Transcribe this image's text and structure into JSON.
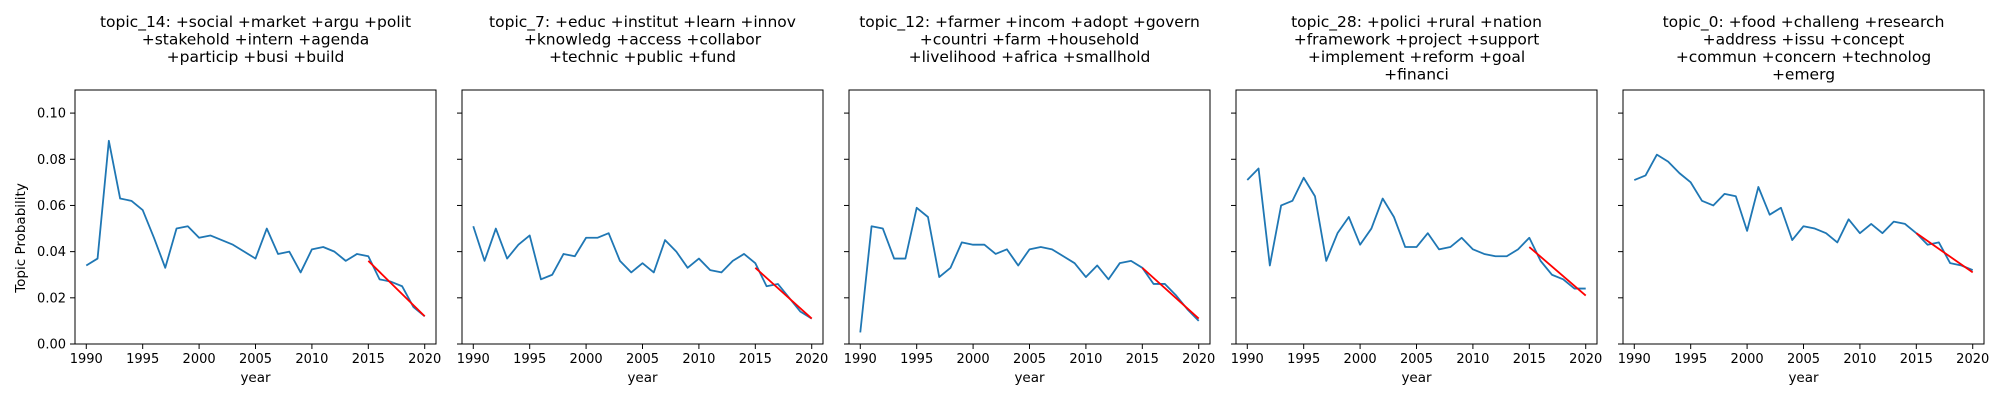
{
  "figure": {
    "ylabel": "Topic Probability",
    "colors": {
      "series": "#1f77b4",
      "trend": "#ff0000"
    }
  },
  "chart_data": [
    {
      "type": "line",
      "title_lines": [
        "topic_14: +social +market +argu +polit",
        "+stakehold +intern +agenda",
        "+particip +busi +build"
      ],
      "xlabel": "year",
      "xlim": [
        1989,
        2021
      ],
      "ylim": [
        0,
        0.11
      ],
      "xticks": [
        "1990",
        "1995",
        "2000",
        "2005",
        "2010",
        "2015",
        "2020"
      ],
      "yticks": [
        "0.00",
        "0.02",
        "0.04",
        "0.06",
        "0.08",
        "0.10"
      ],
      "x": [
        1990,
        1991,
        1992,
        1993,
        1994,
        1995,
        1996,
        1997,
        1998,
        1999,
        2000,
        2001,
        2002,
        2003,
        2004,
        2005,
        2006,
        2007,
        2008,
        2009,
        2010,
        2011,
        2012,
        2013,
        2014,
        2015,
        2016,
        2017,
        2018,
        2019,
        2020
      ],
      "series": [
        {
          "values": [
            0.034,
            0.037,
            0.088,
            0.063,
            0.062,
            0.058,
            0.046,
            0.033,
            0.05,
            0.051,
            0.046,
            0.047,
            0.045,
            0.043,
            0.04,
            0.037,
            0.05,
            0.039,
            0.04,
            0.031,
            0.041,
            0.042,
            0.04,
            0.036,
            0.039,
            0.038,
            0.028,
            0.027,
            0.025,
            0.016,
            0.012
          ]
        },
        {
          "kind": "trend",
          "x": [
            2015,
            2020
          ],
          "values": [
            0.036,
            0.012
          ]
        }
      ]
    },
    {
      "type": "line",
      "title_lines": [
        "topic_7: +educ +institut +learn +innov",
        "+knowledg +access +collabor",
        "+technic +public +fund"
      ],
      "xlabel": "year",
      "xlim": [
        1989,
        2021
      ],
      "ylim": [
        0,
        0.11
      ],
      "xticks": [
        "1990",
        "1995",
        "2000",
        "2005",
        "2010",
        "2015",
        "2020"
      ],
      "x": [
        1990,
        1991,
        1992,
        1993,
        1994,
        1995,
        1996,
        1997,
        1998,
        1999,
        2000,
        2001,
        2002,
        2003,
        2004,
        2005,
        2006,
        2007,
        2008,
        2009,
        2010,
        2011,
        2012,
        2013,
        2014,
        2015,
        2016,
        2017,
        2018,
        2019,
        2020
      ],
      "series": [
        {
          "values": [
            0.051,
            0.036,
            0.05,
            0.037,
            0.043,
            0.047,
            0.028,
            0.03,
            0.039,
            0.038,
            0.046,
            0.046,
            0.048,
            0.036,
            0.031,
            0.035,
            0.031,
            0.045,
            0.04,
            0.033,
            0.037,
            0.032,
            0.031,
            0.036,
            0.039,
            0.035,
            0.025,
            0.026,
            0.02,
            0.014,
            0.011
          ]
        },
        {
          "kind": "trend",
          "x": [
            2015,
            2020
          ],
          "values": [
            0.033,
            0.011
          ]
        }
      ]
    },
    {
      "type": "line",
      "title_lines": [
        "topic_12: +farmer +incom +adopt +govern",
        "+countri +farm +household",
        "+livelihood +africa +smallhold"
      ],
      "xlabel": "year",
      "xlim": [
        1989,
        2021
      ],
      "ylim": [
        0,
        0.11
      ],
      "xticks": [
        "1990",
        "1995",
        "2000",
        "2005",
        "2010",
        "2015",
        "2020"
      ],
      "x": [
        1990,
        1991,
        1992,
        1993,
        1994,
        1995,
        1996,
        1997,
        1998,
        1999,
        2000,
        2001,
        2002,
        2003,
        2004,
        2005,
        2006,
        2007,
        2008,
        2009,
        2010,
        2011,
        2012,
        2013,
        2014,
        2015,
        2016,
        2017,
        2018,
        2019,
        2020
      ],
      "series": [
        {
          "values": [
            0.005,
            0.051,
            0.05,
            0.037,
            0.037,
            0.059,
            0.055,
            0.029,
            0.033,
            0.044,
            0.043,
            0.043,
            0.039,
            0.041,
            0.034,
            0.041,
            0.042,
            0.041,
            0.038,
            0.035,
            0.029,
            0.034,
            0.028,
            0.035,
            0.036,
            0.033,
            0.026,
            0.026,
            0.021,
            0.015,
            0.01
          ]
        },
        {
          "kind": "trend",
          "x": [
            2015,
            2020
          ],
          "values": [
            0.033,
            0.011
          ]
        }
      ]
    },
    {
      "type": "line",
      "title_lines": [
        "topic_28: +polici +rural +nation",
        "+framework +project +support",
        "+implement +reform +goal",
        "+financi"
      ],
      "xlabel": "year",
      "xlim": [
        1989,
        2021
      ],
      "ylim": [
        0,
        0.11
      ],
      "xticks": [
        "1990",
        "1995",
        "2000",
        "2005",
        "2010",
        "2015",
        "2020"
      ],
      "x": [
        1990,
        1991,
        1992,
        1993,
        1994,
        1995,
        1996,
        1997,
        1998,
        1999,
        2000,
        2001,
        2002,
        2003,
        2004,
        2005,
        2006,
        2007,
        2008,
        2009,
        2010,
        2011,
        2012,
        2013,
        2014,
        2015,
        2016,
        2017,
        2018,
        2019,
        2020
      ],
      "series": [
        {
          "values": [
            0.071,
            0.076,
            0.034,
            0.06,
            0.062,
            0.072,
            0.064,
            0.036,
            0.048,
            0.055,
            0.043,
            0.05,
            0.063,
            0.055,
            0.042,
            0.042,
            0.048,
            0.041,
            0.042,
            0.046,
            0.041,
            0.039,
            0.038,
            0.038,
            0.041,
            0.046,
            0.036,
            0.03,
            0.028,
            0.024,
            0.024
          ]
        },
        {
          "kind": "trend",
          "x": [
            2015,
            2020
          ],
          "values": [
            0.042,
            0.021
          ]
        }
      ]
    },
    {
      "type": "line",
      "title_lines": [
        "topic_0: +food +challeng +research",
        "+address +issu +concept",
        "+commun +concern +technolog",
        "+emerg"
      ],
      "xlabel": "year",
      "xlim": [
        1989,
        2021
      ],
      "ylim": [
        0,
        0.11
      ],
      "xticks": [
        "1990",
        "1995",
        "2000",
        "2005",
        "2010",
        "2015",
        "2020"
      ],
      "x": [
        1990,
        1991,
        1992,
        1993,
        1994,
        1995,
        1996,
        1997,
        1998,
        1999,
        2000,
        2001,
        2002,
        2003,
        2004,
        2005,
        2006,
        2007,
        2008,
        2009,
        2010,
        2011,
        2012,
        2013,
        2014,
        2015,
        2016,
        2017,
        2018,
        2019,
        2020
      ],
      "series": [
        {
          "values": [
            0.071,
            0.073,
            0.082,
            0.079,
            0.074,
            0.07,
            0.062,
            0.06,
            0.065,
            0.064,
            0.049,
            0.068,
            0.056,
            0.059,
            0.045,
            0.051,
            0.05,
            0.048,
            0.044,
            0.054,
            0.048,
            0.052,
            0.048,
            0.053,
            0.052,
            0.048,
            0.043,
            0.044,
            0.035,
            0.034,
            0.032
          ]
        },
        {
          "kind": "trend",
          "x": [
            2015,
            2020
          ],
          "values": [
            0.048,
            0.031
          ]
        }
      ]
    }
  ]
}
